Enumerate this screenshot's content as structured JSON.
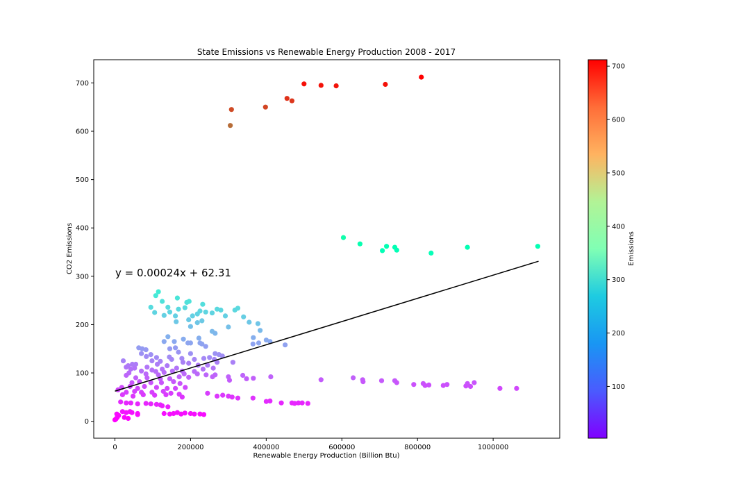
{
  "chart_data": {
    "type": "scatter",
    "title": "State Emissions vs Renewable Energy Production 2008 - 2017",
    "xlabel": "Renewable Energy Production (Billion Btu)",
    "ylabel": "CO2 Emissions",
    "xlim": [
      -56000,
      1176000
    ],
    "ylim": [
      -35,
      748
    ],
    "x_ticks": [
      0,
      200000,
      400000,
      600000,
      800000,
      1000000
    ],
    "x_tick_labels": [
      "0",
      "200000",
      "400000",
      "600000",
      "800000",
      "1000000"
    ],
    "y_ticks": [
      0,
      100,
      200,
      300,
      400,
      500,
      600,
      700
    ],
    "y_tick_labels": [
      "0",
      "100",
      "200",
      "300",
      "400",
      "500",
      "600",
      "700"
    ],
    "grid": false,
    "colorbar": {
      "label": "Emissions",
      "colormap": "rainbow",
      "range": [
        3,
        712
      ],
      "ticks": [
        100,
        200,
        300,
        400,
        500,
        600,
        700
      ],
      "tick_labels": [
        "100",
        "200",
        "300",
        "400",
        "500",
        "600",
        "700"
      ]
    },
    "regression": {
      "equation": "y = 0.00024x + 62.31",
      "slope": 0.00024,
      "intercept": 62.31,
      "x_range": [
        0,
        1120000
      ],
      "color": "#000000"
    },
    "points": [
      [
        810000,
        712
      ],
      [
        500000,
        698
      ],
      [
        545000,
        695
      ],
      [
        585000,
        694
      ],
      [
        715000,
        697
      ],
      [
        455000,
        668
      ],
      [
        468000,
        663
      ],
      [
        398000,
        650
      ],
      [
        308000,
        645
      ],
      [
        305000,
        612
      ],
      [
        1118000,
        362
      ],
      [
        932000,
        360
      ],
      [
        836000,
        348
      ],
      [
        745000,
        354
      ],
      [
        740000,
        360
      ],
      [
        718000,
        362
      ],
      [
        707000,
        353
      ],
      [
        648000,
        367
      ],
      [
        604000,
        380
      ],
      [
        115000,
        268
      ],
      [
        108000,
        260
      ],
      [
        165000,
        255
      ],
      [
        125000,
        248
      ],
      [
        190000,
        246
      ],
      [
        196000,
        248
      ],
      [
        95000,
        236
      ],
      [
        140000,
        236
      ],
      [
        185000,
        235
      ],
      [
        232000,
        242
      ],
      [
        325000,
        234
      ],
      [
        270000,
        232
      ],
      [
        280000,
        230
      ],
      [
        317000,
        230
      ],
      [
        168000,
        232
      ],
      [
        105000,
        225
      ],
      [
        145000,
        226
      ],
      [
        130000,
        219
      ],
      [
        160000,
        218
      ],
      [
        205000,
        218
      ],
      [
        218000,
        222
      ],
      [
        225000,
        228
      ],
      [
        240000,
        226
      ],
      [
        257000,
        224
      ],
      [
        292000,
        218
      ],
      [
        340000,
        216
      ],
      [
        195000,
        210
      ],
      [
        230000,
        208
      ],
      [
        162000,
        206
      ],
      [
        355000,
        205
      ],
      [
        218000,
        204
      ],
      [
        200000,
        196
      ],
      [
        378000,
        202
      ],
      [
        300000,
        195
      ],
      [
        257000,
        186
      ],
      [
        265000,
        182
      ],
      [
        384000,
        188
      ],
      [
        140000,
        175
      ],
      [
        181000,
        170
      ],
      [
        222000,
        172
      ],
      [
        366000,
        173
      ],
      [
        130000,
        165
      ],
      [
        193000,
        162
      ],
      [
        200000,
        162
      ],
      [
        225000,
        162
      ],
      [
        157000,
        165
      ],
      [
        230000,
        160
      ],
      [
        365000,
        160
      ],
      [
        380000,
        162
      ],
      [
        400000,
        168
      ],
      [
        410000,
        165
      ],
      [
        450000,
        158
      ],
      [
        240000,
        155
      ],
      [
        160000,
        152
      ],
      [
        145000,
        150
      ],
      [
        72000,
        150
      ],
      [
        63000,
        152
      ],
      [
        82000,
        148
      ],
      [
        168000,
        143
      ],
      [
        70000,
        140
      ],
      [
        95000,
        138
      ],
      [
        200000,
        140
      ],
      [
        265000,
        140
      ],
      [
        275000,
        138
      ],
      [
        284000,
        135
      ],
      [
        250000,
        132
      ],
      [
        83000,
        134
      ],
      [
        110000,
        132
      ],
      [
        144000,
        133
      ],
      [
        177000,
        130
      ],
      [
        210000,
        128
      ],
      [
        235000,
        130
      ],
      [
        263000,
        128
      ],
      [
        22000,
        125
      ],
      [
        98000,
        125
      ],
      [
        120000,
        124
      ],
      [
        150000,
        128
      ],
      [
        180000,
        122
      ],
      [
        270000,
        122
      ],
      [
        312000,
        122
      ],
      [
        46000,
        118
      ],
      [
        30000,
        112
      ],
      [
        35000,
        115
      ],
      [
        55000,
        118
      ],
      [
        112000,
        118
      ],
      [
        138000,
        115
      ],
      [
        195000,
        120
      ],
      [
        220000,
        116
      ],
      [
        245000,
        116
      ],
      [
        42000,
        108
      ],
      [
        52000,
        110
      ],
      [
        85000,
        112
      ],
      [
        98000,
        106
      ],
      [
        125000,
        108
      ],
      [
        163000,
        110
      ],
      [
        233000,
        108
      ],
      [
        260000,
        110
      ],
      [
        70000,
        104
      ],
      [
        108000,
        103
      ],
      [
        130000,
        101
      ],
      [
        152000,
        104
      ],
      [
        178000,
        104
      ],
      [
        210000,
        103
      ],
      [
        37000,
        100
      ],
      [
        82000,
        98
      ],
      [
        115000,
        96
      ],
      [
        183000,
        98
      ],
      [
        218000,
        98
      ],
      [
        241000,
        96
      ],
      [
        265000,
        96
      ],
      [
        300000,
        92
      ],
      [
        338000,
        95
      ],
      [
        348000,
        88
      ],
      [
        366000,
        89
      ],
      [
        412000,
        92
      ],
      [
        545000,
        86
      ],
      [
        630000,
        90
      ],
      [
        655000,
        86
      ],
      [
        705000,
        84
      ],
      [
        740000,
        84
      ],
      [
        745000,
        80
      ],
      [
        656000,
        82
      ],
      [
        790000,
        76
      ],
      [
        815000,
        78
      ],
      [
        820000,
        74
      ],
      [
        830000,
        75
      ],
      [
        868000,
        74
      ],
      [
        878000,
        76
      ],
      [
        928000,
        73
      ],
      [
        932000,
        78
      ],
      [
        940000,
        72
      ],
      [
        950000,
        80
      ],
      [
        1018000,
        68
      ],
      [
        1062000,
        68
      ],
      [
        30000,
        95
      ],
      [
        55000,
        90
      ],
      [
        85000,
        90
      ],
      [
        120000,
        88
      ],
      [
        145000,
        88
      ],
      [
        170000,
        92
      ],
      [
        195000,
        91
      ],
      [
        258000,
        92
      ],
      [
        303000,
        85
      ],
      [
        45000,
        80
      ],
      [
        65000,
        82
      ],
      [
        95000,
        80
      ],
      [
        123000,
        80
      ],
      [
        155000,
        82
      ],
      [
        172000,
        78
      ],
      [
        18000,
        70
      ],
      [
        40000,
        72
      ],
      [
        60000,
        68
      ],
      [
        78000,
        72
      ],
      [
        110000,
        70
      ],
      [
        138000,
        68
      ],
      [
        160000,
        68
      ],
      [
        186000,
        70
      ],
      [
        8000,
        65
      ],
      [
        30000,
        60
      ],
      [
        52000,
        62
      ],
      [
        70000,
        60
      ],
      [
        98000,
        60
      ],
      [
        128000,
        62
      ],
      [
        148000,
        58
      ],
      [
        170000,
        56
      ],
      [
        20000,
        55
      ],
      [
        48000,
        52
      ],
      [
        75000,
        55
      ],
      [
        105000,
        54
      ],
      [
        135000,
        55
      ],
      [
        178000,
        50
      ],
      [
        245000,
        58
      ],
      [
        270000,
        52
      ],
      [
        285000,
        54
      ],
      [
        300000,
        52
      ],
      [
        310000,
        50
      ],
      [
        325000,
        48
      ],
      [
        365000,
        48
      ],
      [
        15000,
        40
      ],
      [
        30000,
        38
      ],
      [
        42000,
        38
      ],
      [
        60000,
        36
      ],
      [
        82000,
        37
      ],
      [
        95000,
        36
      ],
      [
        120000,
        34
      ],
      [
        125000,
        32
      ],
      [
        140000,
        30
      ],
      [
        400000,
        41
      ],
      [
        410000,
        42
      ],
      [
        440000,
        38
      ],
      [
        468000,
        38
      ],
      [
        475000,
        37
      ],
      [
        485000,
        38
      ],
      [
        495000,
        38
      ],
      [
        510000,
        37
      ],
      [
        20000,
        20
      ],
      [
        30000,
        18
      ],
      [
        40000,
        20
      ],
      [
        45000,
        18
      ],
      [
        60000,
        16
      ],
      [
        130000,
        16
      ],
      [
        145000,
        15
      ],
      [
        155000,
        16
      ],
      [
        165000,
        18
      ],
      [
        175000,
        15
      ],
      [
        185000,
        17
      ],
      [
        200000,
        16
      ],
      [
        210000,
        15
      ],
      [
        225000,
        15
      ],
      [
        235000,
        14
      ],
      [
        5000,
        15
      ],
      [
        10000,
        12
      ],
      [
        25000,
        8
      ],
      [
        35000,
        6
      ],
      [
        3000,
        5
      ],
      [
        0,
        3
      ],
      [
        6000,
        8
      ],
      [
        60000,
        14
      ],
      [
        110000,
        35
      ]
    ]
  }
}
